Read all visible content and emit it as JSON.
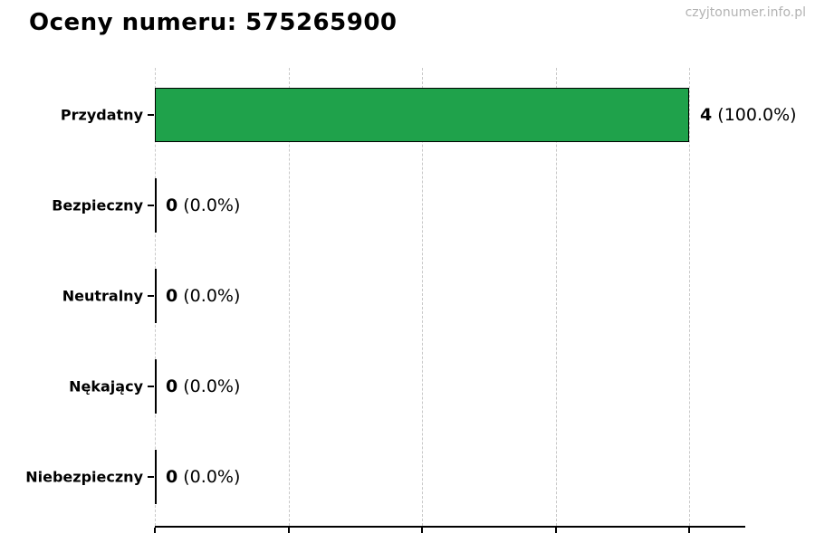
{
  "page": {
    "title": "Oceny numeru: 575265900",
    "watermark": "czyjtonumer.info.pl"
  },
  "chart_data": {
    "type": "bar",
    "orientation": "horizontal",
    "title": "Oceny numeru: 575265900",
    "categories": [
      "Przydatny",
      "Bezpieczny",
      "Neutralny",
      "Nękający",
      "Niebezpieczny"
    ],
    "values": [
      4,
      0,
      0,
      0,
      0
    ],
    "percent_labels": [
      "(100.0%)",
      "(0.0%)",
      "(0.0%)",
      "(0.0%)",
      "(0.0%)"
    ],
    "xlim": [
      0,
      4.42
    ],
    "x_ticks": [
      0,
      1,
      2,
      3,
      4
    ],
    "x_tick_labels_visible": false,
    "grid": "vertical-dashed",
    "legend": "none",
    "colors": {
      "bar_fill": "#1fa24b",
      "bar_edge": "#000000",
      "gridline": "#c9c9c9",
      "axis": "#000000",
      "watermark_text": "#b3b3b3",
      "text": "#000000"
    }
  }
}
